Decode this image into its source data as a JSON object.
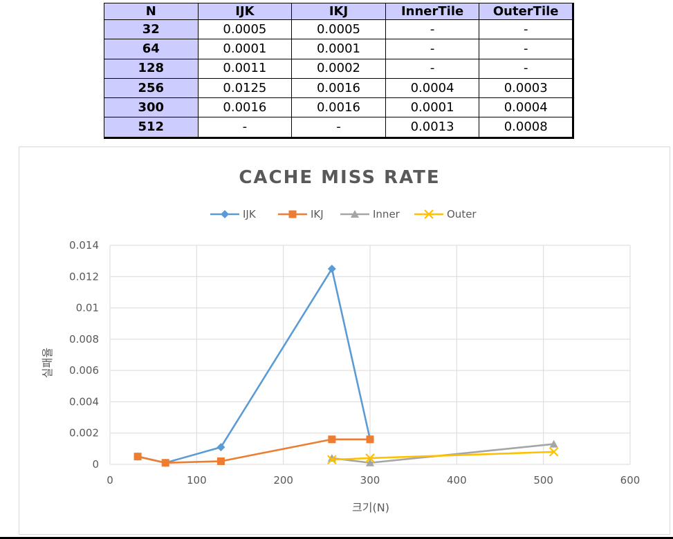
{
  "table": {
    "headers": [
      "N",
      "IJK",
      "IKJ",
      "InnerTile",
      "OuterTile"
    ],
    "rows": [
      [
        "32",
        "0.0005",
        "0.0005",
        "-",
        "-"
      ],
      [
        "64",
        "0.0001",
        "0.0001",
        "-",
        "-"
      ],
      [
        "128",
        "0.0011",
        "0.0002",
        "-",
        "-"
      ],
      [
        "256",
        "0.0125",
        "0.0016",
        "0.0004",
        "0.0003"
      ],
      [
        "300",
        "0.0016",
        "0.0016",
        "0.0001",
        "0.0004"
      ],
      [
        "512",
        "-",
        "-",
        "0.0013",
        "0.0008"
      ]
    ]
  },
  "chart_data": {
    "type": "scatter",
    "title": "CACHE MISS RATE",
    "xlabel": "크기(N)",
    "ylabel": "실패율",
    "xlim": [
      0,
      600
    ],
    "ylim": [
      0,
      0.014
    ],
    "x_ticks": [
      "0",
      "100",
      "200",
      "300",
      "400",
      "500",
      "600"
    ],
    "y_ticks": [
      "0",
      "0.002",
      "0.004",
      "0.006",
      "0.008",
      "0.01",
      "0.012",
      "0.014"
    ],
    "grid": true,
    "legend_position": "top",
    "series": [
      {
        "name": "IJK",
        "color": "#5b9bd5",
        "marker": "diamond",
        "x": [
          32,
          64,
          128,
          256,
          300
        ],
        "y": [
          0.0005,
          0.0001,
          0.0011,
          0.0125,
          0.0016
        ]
      },
      {
        "name": "IKJ",
        "color": "#ed7d31",
        "marker": "square",
        "x": [
          32,
          64,
          128,
          256,
          300
        ],
        "y": [
          0.0005,
          0.0001,
          0.0002,
          0.0016,
          0.0016
        ]
      },
      {
        "name": "Inner",
        "color": "#a5a5a5",
        "marker": "triangle",
        "x": [
          256,
          300,
          512
        ],
        "y": [
          0.0004,
          0.0001,
          0.0013
        ]
      },
      {
        "name": "Outer",
        "color": "#ffc000",
        "marker": "x",
        "x": [
          256,
          300,
          512
        ],
        "y": [
          0.0003,
          0.0004,
          0.0008
        ]
      }
    ]
  }
}
